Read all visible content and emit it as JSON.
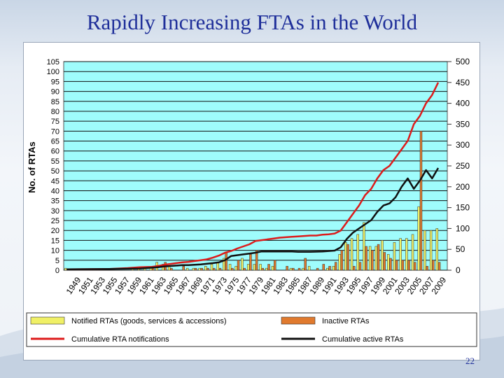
{
  "slide": {
    "title": "Rapidly Increasing FTAs in the World",
    "page_number": "22"
  },
  "chart_data": {
    "type": "bar",
    "title": "",
    "ylabel": "No. of RTAs",
    "ylim": [
      0,
      105
    ],
    "y_ticks": [
      0,
      5,
      10,
      15,
      20,
      25,
      30,
      35,
      40,
      45,
      50,
      55,
      60,
      65,
      70,
      75,
      80,
      85,
      90,
      95,
      100,
      105
    ],
    "y2lim": [
      0,
      500
    ],
    "y2_ticks": [
      0,
      50,
      100,
      150,
      200,
      250,
      300,
      350,
      400,
      450,
      500
    ],
    "x_tick_labels": [
      "1949",
      "1951",
      "1953",
      "1955",
      "1957",
      "1959",
      "1961",
      "1963",
      "1965",
      "1967",
      "1969",
      "1971",
      "1973",
      "1975",
      "1977",
      "1979",
      "1981",
      "1983",
      "1985",
      "1987",
      "1989",
      "1991",
      "1993",
      "1995",
      "1997",
      "1999",
      "2001",
      "2003",
      "2005",
      "2007",
      "2009"
    ],
    "x_range": [
      1948,
      2010
    ],
    "grid": true,
    "legend_position": "bottom",
    "series": [
      {
        "name": "Notified RTAs (goods, services & accessions)",
        "kind": "bar",
        "axis": "left",
        "color": "#f0f066",
        "x": [
          1948,
          1949,
          1950,
          1951,
          1952,
          1953,
          1954,
          1955,
          1956,
          1957,
          1958,
          1959,
          1960,
          1961,
          1962,
          1963,
          1964,
          1965,
          1966,
          1967,
          1968,
          1969,
          1970,
          1971,
          1972,
          1973,
          1974,
          1975,
          1976,
          1977,
          1978,
          1979,
          1980,
          1981,
          1982,
          1983,
          1984,
          1985,
          1986,
          1987,
          1988,
          1989,
          1990,
          1991,
          1992,
          1993,
          1994,
          1995,
          1996,
          1997,
          1998,
          1999,
          2000,
          2001,
          2002,
          2003,
          2004,
          2005,
          2006,
          2007,
          2008,
          2009
        ],
        "values": [
          1,
          0,
          0,
          0,
          0,
          0,
          0,
          0,
          0,
          0,
          0,
          1,
          1,
          1,
          1,
          4,
          3,
          2,
          0,
          0,
          1,
          1,
          1,
          2,
          3,
          4,
          6,
          3,
          2,
          6,
          3,
          3,
          3,
          1,
          2,
          0,
          0,
          1,
          0,
          1,
          2,
          0,
          0,
          1,
          2,
          8,
          14,
          16,
          18,
          24,
          12,
          12,
          15,
          8,
          14,
          16,
          16,
          18,
          32,
          20,
          20,
          21
        ]
      },
      {
        "name": "Inactive RTAs",
        "kind": "bar",
        "axis": "left",
        "color": "#e07a2e",
        "x": [
          1948,
          1949,
          1950,
          1951,
          1952,
          1953,
          1954,
          1955,
          1956,
          1957,
          1958,
          1959,
          1960,
          1961,
          1962,
          1963,
          1964,
          1965,
          1966,
          1967,
          1968,
          1969,
          1970,
          1971,
          1972,
          1973,
          1974,
          1975,
          1976,
          1977,
          1978,
          1979,
          1980,
          1981,
          1982,
          1983,
          1984,
          1985,
          1986,
          1987,
          1988,
          1989,
          1990,
          1991,
          1992,
          1993,
          1994,
          1995,
          1996,
          1997,
          1998,
          1999,
          2000,
          2001,
          2002,
          2003,
          2004,
          2005,
          2006,
          2007,
          2008,
          2009
        ],
        "values": [
          0,
          0,
          0,
          0,
          0,
          0,
          0,
          0,
          0,
          0,
          0,
          0,
          0,
          0,
          1,
          0,
          4,
          1,
          0,
          2,
          0,
          1,
          1,
          1,
          1,
          1,
          9,
          1,
          5,
          1,
          8,
          10,
          1,
          3,
          5,
          0,
          2,
          1,
          1,
          6,
          0,
          1,
          3,
          2,
          4,
          10,
          13,
          2,
          4,
          12,
          10,
          13,
          9,
          6,
          5,
          5,
          5,
          4,
          70,
          2,
          5,
          4
        ]
      },
      {
        "name": "Cumulative RTA notifications",
        "kind": "line",
        "axis": "right",
        "color": "#dd1b1b",
        "x": [
          1948,
          1955,
          1958,
          1960,
          1962,
          1963,
          1964,
          1965,
          1966,
          1967,
          1968,
          1969,
          1970,
          1971,
          1972,
          1973,
          1974,
          1975,
          1976,
          1977,
          1978,
          1979,
          1980,
          1981,
          1982,
          1983,
          1984,
          1985,
          1986,
          1987,
          1988,
          1989,
          1990,
          1991,
          1992,
          1993,
          1994,
          1995,
          1996,
          1997,
          1998,
          1999,
          2000,
          2001,
          2002,
          2003,
          2004,
          2005,
          2006,
          2007,
          2008,
          2009
        ],
        "values": [
          2,
          3,
          5,
          7,
          8,
          10,
          13,
          15,
          17,
          19,
          20,
          22,
          24,
          26,
          30,
          35,
          42,
          46,
          52,
          57,
          62,
          70,
          72,
          74,
          76,
          78,
          79,
          80,
          81,
          82,
          83,
          83,
          85,
          86,
          88,
          95,
          115,
          135,
          155,
          180,
          195,
          220,
          240,
          250,
          270,
          290,
          310,
          350,
          370,
          400,
          420,
          450
        ]
      },
      {
        "name": "Cumulative active RTAs",
        "kind": "line",
        "axis": "right",
        "color": "#111111",
        "x": [
          1948,
          1955,
          1960,
          1962,
          1963,
          1964,
          1965,
          1966,
          1967,
          1968,
          1970,
          1972,
          1973,
          1974,
          1975,
          1977,
          1978,
          1979,
          1980,
          1985,
          1986,
          1988,
          1990,
          1991,
          1992,
          1993,
          1994,
          1995,
          1996,
          1997,
          1998,
          1999,
          2000,
          2001,
          2002,
          2003,
          2004,
          2005,
          2006,
          2007,
          2008,
          2009
        ],
        "values": [
          2,
          3,
          4,
          6,
          7,
          9,
          10,
          11,
          12,
          12,
          14,
          17,
          19,
          24,
          34,
          38,
          40,
          42,
          45,
          45,
          44,
          44,
          45,
          46,
          47,
          55,
          75,
          90,
          100,
          110,
          120,
          140,
          155,
          160,
          175,
          200,
          220,
          195,
          215,
          240,
          220,
          245
        ]
      }
    ]
  }
}
